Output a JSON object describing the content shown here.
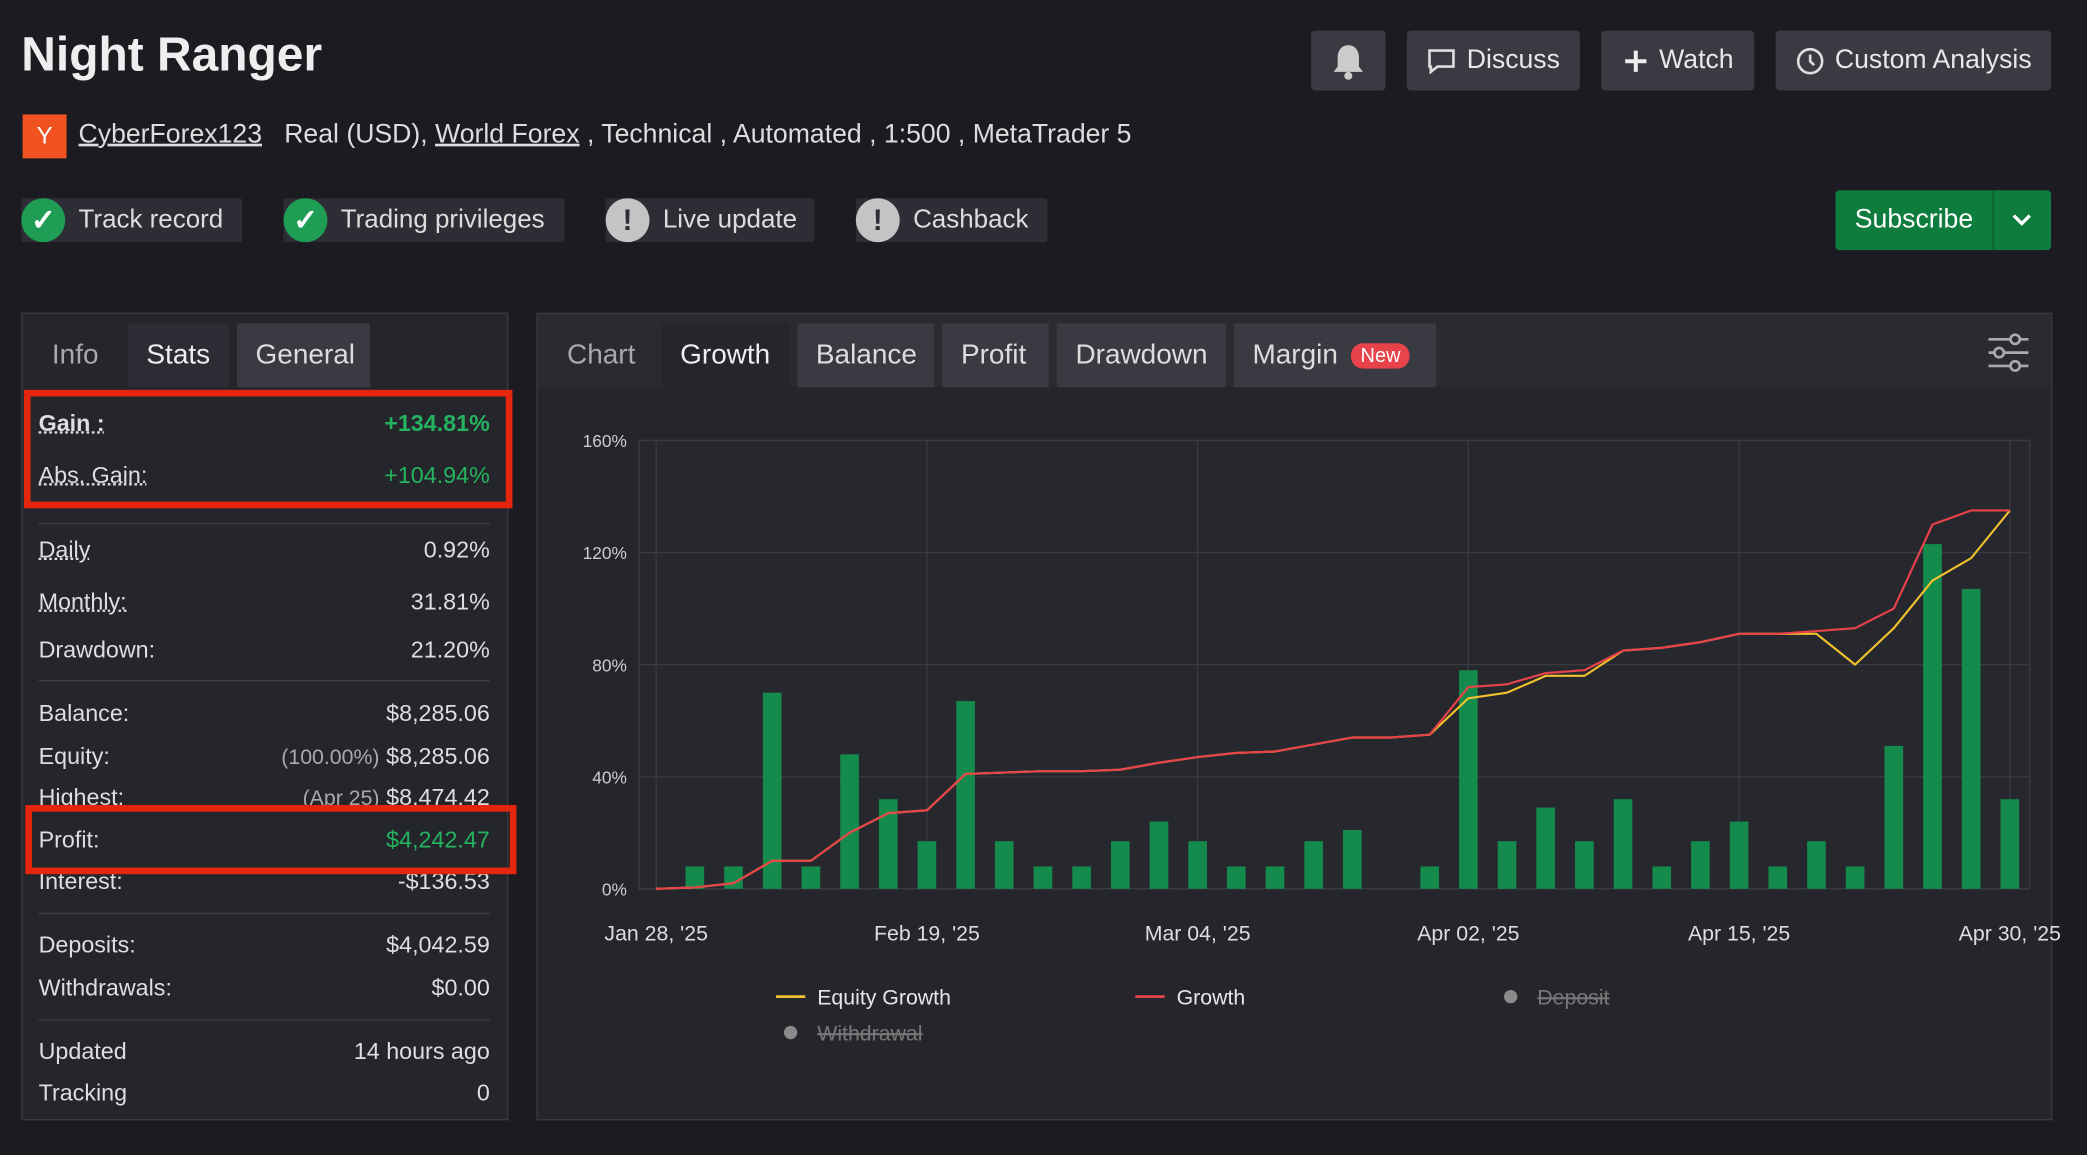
{
  "header": {
    "title": "Night Ranger",
    "buttons": [
      "Discuss",
      "Watch",
      "Custom Analysis"
    ],
    "author": "CyberForex123",
    "account": "Real (USD),",
    "broker": "World Forex",
    "details": ", Technical , Automated , 1:500 , MetaTrader 5",
    "badges": [
      "Track record",
      "Trading privileges",
      "Live update",
      "Cashback"
    ],
    "subscribe": "Subscribe"
  },
  "stats": {
    "tabs": [
      "Info",
      "Stats",
      "General"
    ],
    "rows": [
      {
        "label": "Gain :",
        "value": "+134.81%"
      },
      {
        "label": "Abs. Gain:",
        "value": "+104.94%"
      },
      {
        "label": "Daily",
        "value": "0.92%"
      },
      {
        "label": "Monthly:",
        "value": "31.81%"
      },
      {
        "label": "Drawdown:",
        "value": "21.20%"
      },
      {
        "label": "Balance:",
        "value": "$8,285.06"
      },
      {
        "label": "Equity:",
        "note": "(100.00%)",
        "value": "$8,285.06"
      },
      {
        "label": "Highest:",
        "note": "(Apr 25)",
        "value": "$8,474.42"
      },
      {
        "label": "Profit:",
        "value": "$4,242.47"
      },
      {
        "label": "Interest:",
        "value": "-$136.53"
      },
      {
        "label": "Deposits:",
        "value": "$4,042.59"
      },
      {
        "label": "Withdrawals:",
        "value": "$0.00"
      },
      {
        "label": "Updated",
        "value": "14 hours ago"
      },
      {
        "label": "Tracking",
        "value": "0"
      }
    ]
  },
  "chart_tabs": {
    "tabs": [
      "Chart",
      "Growth",
      "Balance",
      "Profit",
      "Drawdown",
      "Margin"
    ],
    "badge": "New"
  },
  "chart_data": {
    "type": "line",
    "categories": [
      "Jan 28, '25",
      null,
      null,
      null,
      null,
      null,
      null,
      "Feb 19, '25",
      null,
      null,
      null,
      null,
      null,
      null,
      "Mar 04, '25",
      null,
      null,
      null,
      null,
      null,
      null,
      "Apr 02, '25",
      null,
      null,
      null,
      null,
      null,
      null,
      "Apr 15, '25",
      null,
      null,
      null,
      null,
      null,
      null,
      "Apr 30, '25"
    ],
    "values": [
      null,
      8,
      8,
      70,
      8,
      48,
      32,
      17,
      67,
      17,
      8,
      8,
      17,
      24,
      17,
      8,
      8,
      17,
      21,
      null,
      8,
      78,
      17,
      29,
      17,
      32,
      8,
      17,
      24,
      8,
      17,
      8,
      51,
      123,
      107,
      32
    ],
    "color": "#148a4c",
    "series": [
      {
        "name": "Equity Growth",
        "color": "#f2c12e",
        "values": [
          0,
          0.5,
          2,
          10,
          10,
          20,
          27,
          28,
          41,
          41.5,
          42,
          42,
          42.5,
          45,
          47,
          48.5,
          49,
          51.5,
          54,
          54,
          55,
          68,
          70,
          76,
          76,
          85,
          86,
          88,
          91,
          91,
          91,
          80,
          93,
          110,
          118,
          135
        ]
      },
      {
        "name": "Growth",
        "color": "#e8424a",
        "values": [
          0,
          0.5,
          2,
          10,
          10,
          20,
          27,
          28,
          41,
          41.5,
          42,
          42,
          42.5,
          45,
          47,
          48.5,
          49,
          51.5,
          54,
          54,
          55,
          72,
          73,
          77,
          78,
          85,
          86,
          88,
          91,
          91,
          92,
          93,
          100,
          130,
          135,
          135
        ]
      },
      {
        "name": "Deposit",
        "color": "#8a8a8a",
        "hidden": true
      },
      {
        "name": "Withdrawal",
        "color": "#8a8a8a",
        "hidden": true
      }
    ],
    "ylim": [
      0,
      160
    ],
    "yticks": [
      {
        "value": 0,
        "label": "0%"
      },
      {
        "value": 40,
        "label": "40%"
      },
      {
        "value": 80,
        "label": "80%"
      },
      {
        "value": 120,
        "label": "120%"
      },
      {
        "value": 160,
        "label": "160%"
      }
    ],
    "grid": true
  }
}
